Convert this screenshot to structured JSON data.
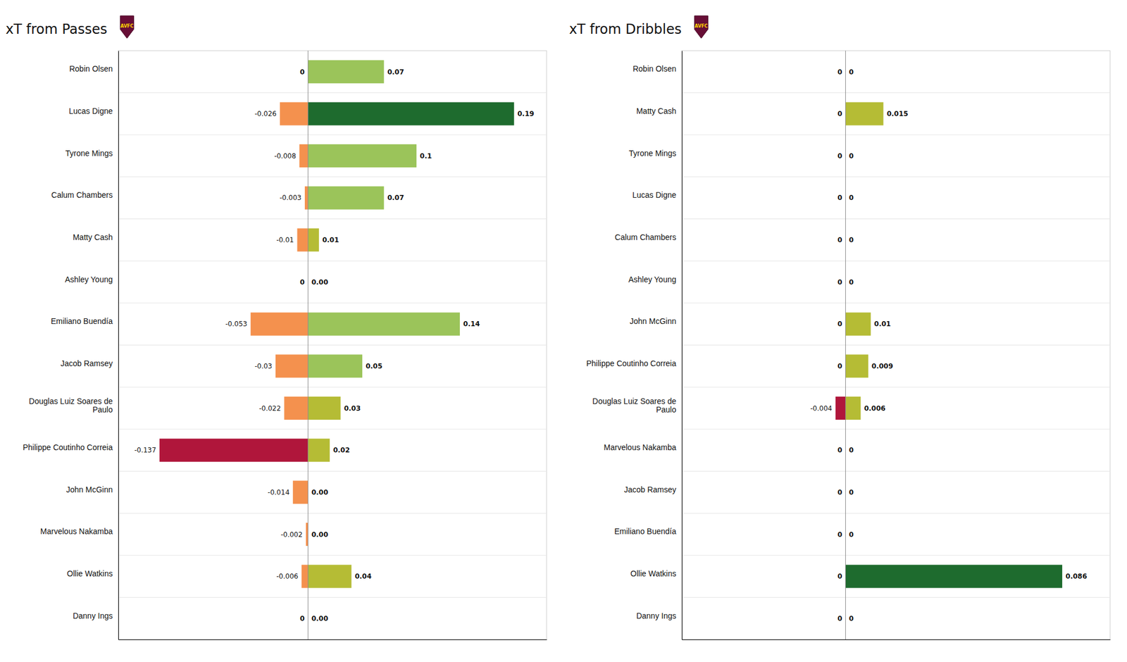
{
  "chart_data": [
    {
      "type": "bar",
      "orientation": "horizontal",
      "title": "xT from Passes",
      "annotations": [
        "AVFC"
      ],
      "categories": [
        "Robin Olsen",
        "Lucas Digne",
        "Tyrone Mings",
        "Calum Chambers",
        "Matty Cash",
        "Ashley  Young",
        "Emiliano Buendía",
        "Jacob Ramsey",
        "Douglas Luiz Soares de\nPaulo",
        "Philippe Coutinho Correia",
        "John McGinn",
        "Marvelous Nakamba",
        "Ollie Watkins",
        "Danny Ings"
      ],
      "series": [
        {
          "values": [
            0,
            -0.026,
            -0.008,
            -0.003,
            -0.01,
            0,
            -0.053,
            -0.03,
            -0.022,
            -0.137,
            -0.014,
            -0.002,
            -0.006,
            0
          ],
          "value_labels": [
            "0",
            "-0.026",
            "-0.008",
            "-0.003",
            "-0.01",
            "0",
            "-0.053",
            "-0.03",
            "-0.022",
            "-0.137",
            "-0.014",
            "-0.002",
            "-0.006",
            "0"
          ],
          "colors": [
            null,
            "#F4914E",
            "#F4914E",
            "#F4914E",
            "#F4914E",
            null,
            "#F4914E",
            "#F4914E",
            "#F4914E",
            "#B0163B",
            "#F4914E",
            "#F4914E",
            "#F4914E",
            null
          ]
        },
        {
          "values": [
            0.07,
            0.19,
            0.1,
            0.07,
            0.01,
            0,
            0.14,
            0.05,
            0.03,
            0.02,
            0,
            0,
            0.04,
            0
          ],
          "value_labels": [
            "0.07",
            "0.19",
            "0.1",
            "0.07",
            "0.01",
            "0.00",
            "0.14",
            "0.05",
            "0.03",
            "0.02",
            "0.00",
            "0.00",
            "0.04",
            "0.00"
          ],
          "colors": [
            "#9BC45A",
            "#1E6B2E",
            "#9BC45A",
            "#9BC45A",
            "#B5BC35",
            null,
            "#9BC45A",
            "#9BC45A",
            "#B5BC35",
            "#B5BC35",
            null,
            null,
            "#B5BC35",
            null
          ]
        }
      ],
      "xlim": [
        -0.175,
        0.22
      ],
      "tick_labels": false,
      "data_labels": true,
      "grid": true
    },
    {
      "type": "bar",
      "orientation": "horizontal",
      "title": "xT from Dribbles",
      "annotations": [
        "AVFC"
      ],
      "categories": [
        "Robin Olsen",
        "Matty Cash",
        "Tyrone Mings",
        "Lucas Digne",
        "Calum Chambers",
        "Ashley  Young",
        "John McGinn",
        "Philippe Coutinho Correia",
        "Douglas Luiz Soares de\nPaulo",
        "Marvelous Nakamba",
        "Jacob Ramsey",
        "Emiliano Buendía",
        "Ollie Watkins",
        "Danny Ings"
      ],
      "series": [
        {
          "values": [
            0,
            0,
            0,
            0,
            0,
            0,
            0,
            0,
            -0.004,
            0,
            0,
            0,
            0,
            0
          ],
          "value_labels": [
            "0",
            "0",
            "0",
            "0",
            "0",
            "0",
            "0",
            "0",
            "-0.004",
            "0",
            "0",
            "0",
            "0",
            "0"
          ],
          "colors": [
            null,
            null,
            null,
            null,
            null,
            null,
            null,
            null,
            "#B0163B",
            null,
            null,
            null,
            null,
            null
          ]
        },
        {
          "values": [
            0,
            0.015,
            0,
            0,
            0,
            0,
            0.01,
            0.009,
            0.006,
            0,
            0,
            0,
            0.086,
            0
          ],
          "value_labels": [
            "0",
            "0.015",
            "0",
            "0",
            "0",
            "0",
            "0.01",
            "0.009",
            "0.006",
            "0",
            "0",
            "0",
            "0.086",
            "0"
          ],
          "colors": [
            null,
            "#B5BC35",
            null,
            null,
            null,
            null,
            "#B5BC35",
            "#B5BC35",
            "#B5BC35",
            null,
            null,
            null,
            "#1E6B2E",
            null
          ]
        }
      ],
      "xlim": [
        -0.065,
        0.105
      ],
      "tick_labels": false,
      "data_labels": true,
      "grid": true
    }
  ]
}
